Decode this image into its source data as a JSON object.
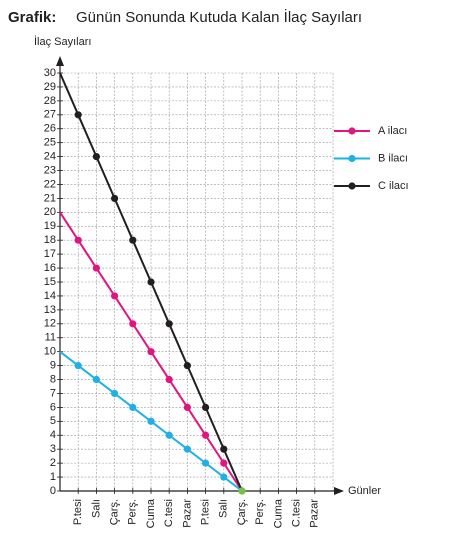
{
  "chart_data": {
    "type": "line",
    "title_prefix": "Grafik:",
    "title": "Günün Sonunda Kutuda Kalan İlaç Sayıları",
    "y_label": "İlaç Sayıları",
    "x_label": "Günler",
    "categories": [
      null,
      "P.tesi",
      "Salı",
      "Çarş.",
      "Perş.",
      "Cuma",
      "C.tesi",
      "Pazar",
      "P.tesi",
      "Salı",
      "Çarş.",
      "Perş.",
      "Cuma",
      "C.tesi",
      "Pazar"
    ],
    "series": [
      {
        "name": "A ilacı",
        "color": "#e0157f",
        "values": [
          20,
          18,
          16,
          14,
          12,
          10,
          8,
          6,
          4,
          2,
          0,
          null,
          null,
          null,
          null
        ]
      },
      {
        "name": "B ilacı",
        "color": "#1fb1e6",
        "values": [
          10,
          9,
          8,
          7,
          6,
          5,
          4,
          3,
          2,
          1,
          0,
          null,
          null,
          null,
          null
        ]
      },
      {
        "name": "C ilacı",
        "color": "#231f20",
        "values": [
          30,
          27,
          24,
          21,
          18,
          15,
          12,
          9,
          6,
          3,
          0,
          null,
          null,
          null,
          null
        ]
      }
    ],
    "end_point_color": "#7ac143",
    "ylim": [
      0,
      30
    ],
    "yticks": [
      0,
      1,
      2,
      3,
      4,
      5,
      6,
      7,
      8,
      9,
      10,
      11,
      12,
      13,
      14,
      15,
      16,
      17,
      18,
      19,
      20,
      21,
      22,
      23,
      24,
      25,
      26,
      27,
      28,
      29,
      30
    ],
    "grid": true,
    "legend": "right"
  }
}
